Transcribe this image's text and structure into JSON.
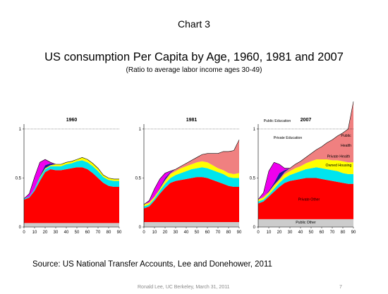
{
  "slide": {
    "heading": "Chart 3",
    "title": "US consumption Per Capita by Age, 1960, 1981 and 2007",
    "subtitle": "(Ratio to average labor income ages 30-49)",
    "source": "Source: US National Transfer Accounts, Lee and Donehower, 2011",
    "footer": "Ronald Lee, UC Berkeley, March 31, 2011",
    "page_number": "7"
  },
  "colors": {
    "private_other": "#ff0000",
    "owned_housing": "#00e5ee",
    "private_health": "#ffff00",
    "public_health": "#f08080",
    "public_education": "#ee00ee",
    "private_education": "#1a1a99",
    "public_other": "#cccccc"
  },
  "chart_data": [
    {
      "type": "area",
      "stacked": true,
      "title": "1960",
      "x": [
        0,
        5,
        10,
        15,
        20,
        25,
        30,
        35,
        40,
        45,
        50,
        55,
        60,
        65,
        70,
        75,
        80,
        85,
        90
      ],
      "x_ticks": [
        "0",
        "10",
        "20",
        "30",
        "40",
        "50",
        "60",
        "70",
        "80",
        "90"
      ],
      "y_ticks": [
        "0",
        "0.5",
        "1"
      ],
      "ylim": [
        0,
        1.05
      ],
      "reference_line": 1,
      "series": [
        {
          "key": "public_other",
          "values": [
            0.04,
            0.04,
            0.04,
            0.04,
            0.04,
            0.04,
            0.04,
            0.04,
            0.04,
            0.04,
            0.04,
            0.04,
            0.04,
            0.04,
            0.04,
            0.04,
            0.04,
            0.04,
            0.04
          ]
        },
        {
          "key": "private_other",
          "values": [
            0.24,
            0.26,
            0.33,
            0.43,
            0.52,
            0.55,
            0.54,
            0.54,
            0.55,
            0.56,
            0.57,
            0.57,
            0.55,
            0.51,
            0.46,
            0.41,
            0.38,
            0.37,
            0.37
          ]
        },
        {
          "key": "owned_housing",
          "values": [
            0.01,
            0.01,
            0.02,
            0.03,
            0.03,
            0.03,
            0.04,
            0.04,
            0.05,
            0.05,
            0.06,
            0.07,
            0.07,
            0.07,
            0.07,
            0.06,
            0.06,
            0.06,
            0.06
          ]
        },
        {
          "key": "private_health",
          "values": [
            0.0,
            0.0,
            0.0,
            0.01,
            0.01,
            0.01,
            0.02,
            0.02,
            0.02,
            0.02,
            0.02,
            0.03,
            0.03,
            0.03,
            0.03,
            0.02,
            0.02,
            0.02,
            0.02
          ]
        },
        {
          "key": "public_health",
          "values": [
            0,
            0,
            0,
            0,
            0,
            0,
            0,
            0,
            0,
            0,
            0,
            0,
            0,
            0,
            0,
            0,
            0,
            0,
            0
          ]
        },
        {
          "key": "private_education",
          "values": [
            0.0,
            0.0,
            0.0,
            0.01,
            0.03,
            0.02,
            0.0,
            0.0,
            0.0,
            0.0,
            0.0,
            0.0,
            0.0,
            0.0,
            0.0,
            0.0,
            0.0,
            0.0,
            0.0
          ]
        },
        {
          "key": "public_education",
          "values": [
            0.0,
            0.03,
            0.12,
            0.14,
            0.06,
            0.01,
            0.0,
            0.0,
            0.0,
            0.0,
            0.0,
            0.0,
            0.0,
            0.0,
            0.0,
            0.0,
            0.0,
            0.0,
            0.0
          ]
        }
      ]
    },
    {
      "type": "area",
      "stacked": true,
      "title": "1981",
      "x": [
        0,
        5,
        10,
        15,
        20,
        25,
        30,
        35,
        40,
        45,
        50,
        55,
        60,
        65,
        70,
        75,
        80,
        85,
        90
      ],
      "x_ticks": [
        "0",
        "10",
        "20",
        "30",
        "40",
        "50",
        "60",
        "70",
        "80",
        "90"
      ],
      "y_ticks": [
        "0",
        "0.5",
        "1"
      ],
      "ylim": [
        0,
        1.05
      ],
      "reference_line": 1,
      "series": [
        {
          "key": "public_other",
          "values": [
            0.05,
            0.05,
            0.05,
            0.05,
            0.05,
            0.05,
            0.05,
            0.05,
            0.05,
            0.05,
            0.05,
            0.05,
            0.05,
            0.05,
            0.05,
            0.05,
            0.05,
            0.05,
            0.05
          ]
        },
        {
          "key": "private_other",
          "values": [
            0.14,
            0.16,
            0.22,
            0.29,
            0.35,
            0.4,
            0.42,
            0.43,
            0.44,
            0.45,
            0.46,
            0.46,
            0.45,
            0.43,
            0.41,
            0.39,
            0.37,
            0.36,
            0.36
          ]
        },
        {
          "key": "owned_housing",
          "values": [
            0.02,
            0.02,
            0.02,
            0.03,
            0.04,
            0.05,
            0.06,
            0.07,
            0.08,
            0.09,
            0.09,
            0.1,
            0.1,
            0.1,
            0.1,
            0.1,
            0.09,
            0.09,
            0.09
          ]
        },
        {
          "key": "private_health",
          "values": [
            0.02,
            0.02,
            0.02,
            0.02,
            0.03,
            0.04,
            0.04,
            0.05,
            0.05,
            0.05,
            0.06,
            0.06,
            0.06,
            0.05,
            0.04,
            0.04,
            0.04,
            0.04,
            0.05
          ]
        },
        {
          "key": "public_health",
          "values": [
            0.0,
            0.0,
            0.0,
            0.0,
            0.01,
            0.01,
            0.02,
            0.02,
            0.03,
            0.04,
            0.05,
            0.07,
            0.09,
            0.12,
            0.15,
            0.19,
            0.22,
            0.24,
            0.34
          ]
        },
        {
          "key": "private_education",
          "values": [
            0.0,
            0.0,
            0.0,
            0.01,
            0.02,
            0.01,
            0.0,
            0.0,
            0.0,
            0.0,
            0.0,
            0.0,
            0.0,
            0.0,
            0.0,
            0.0,
            0.0,
            0.0,
            0.0
          ]
        },
        {
          "key": "public_education",
          "values": [
            0.0,
            0.02,
            0.08,
            0.09,
            0.05,
            0.01,
            0.0,
            0.0,
            0.0,
            0.0,
            0.0,
            0.0,
            0.0,
            0.0,
            0.0,
            0.0,
            0.0,
            0.0,
            0.0
          ]
        }
      ]
    },
    {
      "type": "area",
      "stacked": true,
      "title": "2007",
      "x": [
        0,
        5,
        10,
        15,
        20,
        25,
        30,
        35,
        40,
        45,
        50,
        55,
        60,
        65,
        70,
        75,
        80,
        85,
        90
      ],
      "x_ticks": [
        "0",
        "10",
        "20",
        "30",
        "40",
        "50",
        "60",
        "70",
        "80",
        "90"
      ],
      "y_ticks": [
        "0",
        "0.5",
        "1"
      ],
      "ylim": [
        0,
        1.05
      ],
      "reference_line": 1,
      "annotations": [
        {
          "text": "Public Education",
          "x": 18,
          "y": 1.07,
          "color": "#000000"
        },
        {
          "text": "Private Education",
          "x": 28,
          "y": 0.9,
          "color": "#000000"
        },
        {
          "text": "Public",
          "x": 83,
          "y": 0.92,
          "color": "#000000"
        },
        {
          "text": "Health",
          "x": 83,
          "y": 0.82,
          "color": "#000000"
        },
        {
          "text": "Private Health",
          "x": 76,
          "y": 0.71,
          "color": "#000000"
        },
        {
          "text": "Owned Housing",
          "x": 76,
          "y": 0.62,
          "color": "#000000"
        },
        {
          "text": "Private Other",
          "x": 48,
          "y": 0.27,
          "color": "#000000"
        },
        {
          "text": "Public  Other",
          "x": 45,
          "y": 0.035,
          "color": "#000000"
        }
      ],
      "series": [
        {
          "key": "public_other",
          "values": [
            0.08,
            0.08,
            0.08,
            0.08,
            0.08,
            0.08,
            0.08,
            0.08,
            0.08,
            0.08,
            0.08,
            0.08,
            0.08,
            0.08,
            0.08,
            0.08,
            0.08,
            0.08,
            0.08
          ]
        },
        {
          "key": "private_other",
          "values": [
            0.16,
            0.18,
            0.23,
            0.28,
            0.33,
            0.37,
            0.39,
            0.4,
            0.41,
            0.42,
            0.42,
            0.42,
            0.41,
            0.4,
            0.39,
            0.38,
            0.37,
            0.36,
            0.36
          ]
        },
        {
          "key": "owned_housing",
          "values": [
            0.02,
            0.02,
            0.02,
            0.03,
            0.04,
            0.05,
            0.06,
            0.07,
            0.08,
            0.09,
            0.1,
            0.11,
            0.11,
            0.11,
            0.11,
            0.11,
            0.1,
            0.1,
            0.1
          ]
        },
        {
          "key": "private_health",
          "values": [
            0.02,
            0.02,
            0.02,
            0.03,
            0.03,
            0.04,
            0.04,
            0.05,
            0.05,
            0.06,
            0.07,
            0.08,
            0.09,
            0.1,
            0.1,
            0.11,
            0.12,
            0.12,
            0.12
          ]
        },
        {
          "key": "public_health",
          "values": [
            0.0,
            0.01,
            0.01,
            0.01,
            0.01,
            0.02,
            0.03,
            0.04,
            0.05,
            0.06,
            0.08,
            0.1,
            0.13,
            0.17,
            0.21,
            0.25,
            0.29,
            0.34,
            0.62
          ]
        },
        {
          "key": "private_education",
          "values": [
            0.0,
            0.0,
            0.01,
            0.02,
            0.06,
            0.02,
            0.0,
            0.0,
            0.0,
            0.0,
            0.0,
            0.0,
            0.0,
            0.0,
            0.0,
            0.0,
            0.0,
            0.0,
            0.0
          ]
        },
        {
          "key": "public_education",
          "values": [
            0.0,
            0.04,
            0.2,
            0.21,
            0.09,
            0.02,
            0.0,
            0.0,
            0.0,
            0.0,
            0.0,
            0.0,
            0.0,
            0.0,
            0.0,
            0.0,
            0.0,
            0.0,
            0.0
          ]
        }
      ]
    }
  ]
}
